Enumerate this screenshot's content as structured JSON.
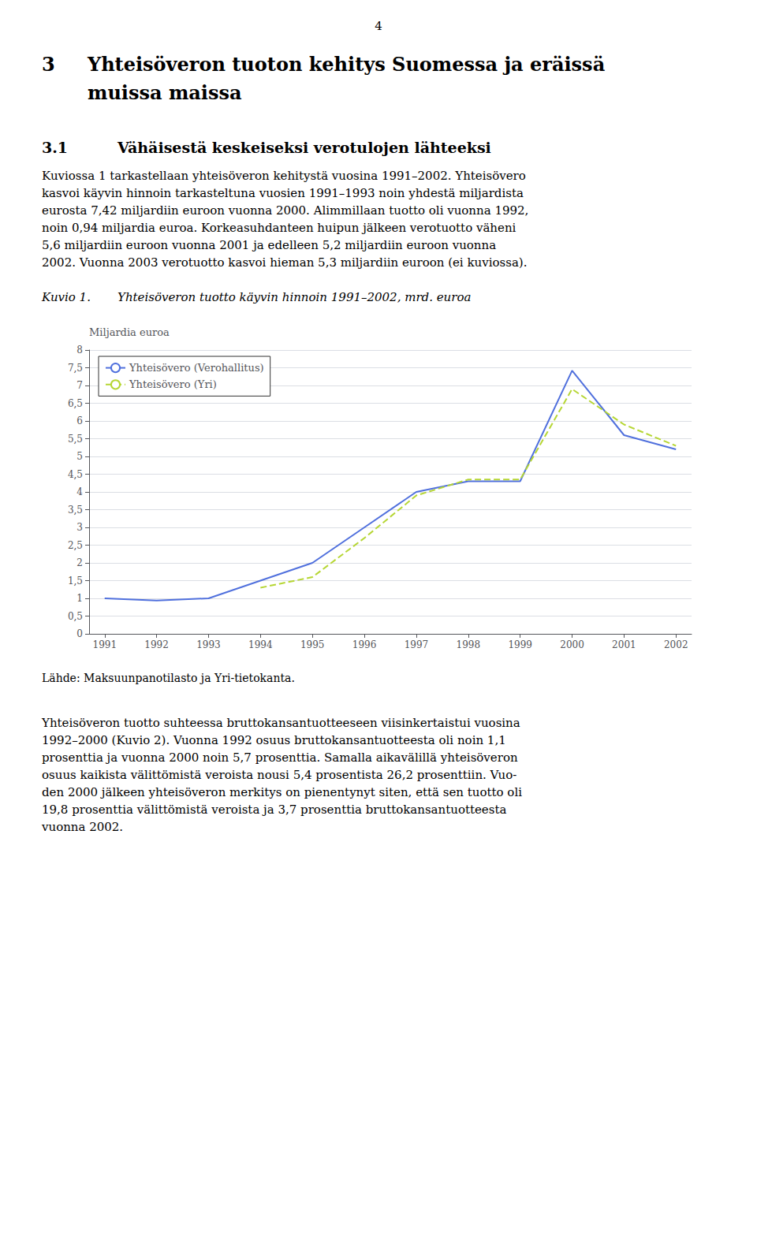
{
  "page": {
    "page_number": "4",
    "chapter_number": "3",
    "chapter_title": [
      "Yhteisöveron tuoton kehitys Suomessa ja eräissä",
      "muissa maissa"
    ],
    "section_number": "3.1",
    "section_title": "Vähäisestä keskeiseksi verotulojen lähteeksi",
    "body_before": [
      "Kuviossa 1 tarkastellaan yhteisöveron kehitystä vuosina 1991–2002. Yhteisövero",
      "kasvoi käyvin hinnoin tarkasteltuna vuosien 1991–1993 noin yhdestä miljardista",
      "eurosta 7,42 miljardiin euroon vuonna 2000. Alimmillaan tuotto oli vuonna 1992,",
      "noin 0,94 miljardia euroa. Korkeasuhdanteen huipun jälkeen verotuotto väheni",
      "5,6 miljardiin euroon vuonna 2001 ja edelleen 5,2 miljardiin euroon vuonna",
      "2002. Vuonna 2003 verotuotto kasvoi hieman 5,3 miljardiin euroon (ei kuviossa)."
    ],
    "figure_label": "Kuvio 1.",
    "source": "Lähde: Maksuunpanotilasto ja Yri-tietokanta.",
    "body_after": [
      "Yhteisöveron tuotto suhteessa bruttokansantuotteeseen viisinkertaistui vuosina",
      "1992–2000 (Kuvio 2). Vuonna 1992 osuus bruttokansantuotteesta oli noin 1,1",
      "prosenttia ja vuonna 2000 noin 5,7 prosenttia. Samalla aikavälillä yhteisöveron",
      "osuus kaikista välittömistä veroista nousi 5,4 prosentista 26,2 prosenttiin. Vuo-",
      "den 2000 jälkeen yhteisöveron merkitys on pienentynyt siten, että sen tuotto oli",
      "19,8 prosenttia välittömistä veroista ja 3,7 prosenttia bruttokansantuotteesta",
      "vuonna 2002."
    ]
  },
  "chart_data": {
    "type": "line",
    "title": "Yhteisöveron tuotto käyvin hinnoin 1991–2002, mrd. euroa",
    "ylabel": "Miljardia euroa",
    "series": [
      {
        "name": "Yhteisövero (Verohallitus)",
        "line_style": "solid",
        "x": [
          1991,
          1992,
          1993,
          1994,
          1995,
          1996,
          1997,
          1998,
          1999,
          2000,
          2001,
          2002
        ],
        "values": [
          1.0,
          0.94,
          1.0,
          1.5,
          2.0,
          3.0,
          4.0,
          4.3,
          4.3,
          7.42,
          5.6,
          5.2
        ]
      },
      {
        "name": "Yhteisövero (Yri)",
        "line_style": "dashed",
        "x": [
          1994,
          1995,
          1996,
          1997,
          1998,
          1999,
          2000,
          2001,
          2002
        ],
        "values": [
          1.3,
          1.6,
          2.7,
          3.9,
          4.35,
          4.35,
          6.9,
          5.9,
          5.3
        ]
      }
    ],
    "xlim": [
      1990.7,
      2002.3
    ],
    "xticks": [
      1991,
      1992,
      1993,
      1994,
      1995,
      1996,
      1997,
      1998,
      1999,
      2000,
      2001,
      2002
    ],
    "ylim": [
      0,
      8
    ],
    "yticks": [
      0,
      {
        "value": 0.5,
        "label": "0,5"
      },
      1,
      {
        "value": 1.5,
        "label": "1,5"
      },
      2,
      {
        "value": 2.5,
        "label": "2,5"
      },
      3,
      {
        "value": 3.5,
        "label": "3,5"
      },
      4,
      {
        "value": 4.5,
        "label": "4,5"
      },
      5,
      {
        "value": 5.5,
        "label": "5,5"
      },
      6,
      {
        "value": 6.5,
        "label": "6,5"
      },
      7,
      {
        "value": 7.5,
        "label": "7,5"
      },
      8
    ],
    "grid": true,
    "legend": "upper left"
  }
}
